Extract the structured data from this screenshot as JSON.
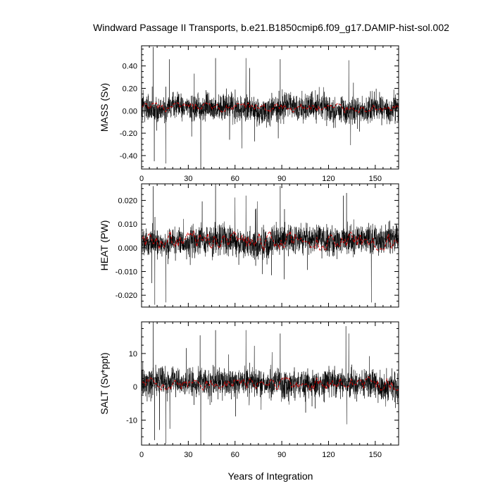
{
  "figure": {
    "title": "Windward Passage II Transports, b.e21.B1850cmip6.f09_g17.DAMIP-hist-sol.002",
    "xlabel": "Years of Integration"
  },
  "chart_data": [
    {
      "type": "line",
      "id": "mass",
      "ylabel": "MASS (Sv)",
      "xlim": [
        0,
        165
      ],
      "ylim": [
        -0.52,
        0.58
      ],
      "xticks": [
        0,
        30,
        60,
        90,
        120,
        150
      ],
      "xtick_labels": [
        "0",
        "30",
        "60",
        "90",
        "120",
        "150"
      ],
      "yticks": [
        0.4,
        0.2,
        0.0,
        -0.2,
        -0.4
      ],
      "ytick_labels": [
        "0.40",
        "0.20",
        "0.00",
        "-0.20",
        "-0.40"
      ],
      "series": [
        {
          "kind": "monthly",
          "color": "#000000",
          "mean": 0.03,
          "spread": 0.1,
          "spikes": [
            [
              7.5,
              0.57
            ],
            [
              8.2,
              -0.45
            ],
            [
              15.5,
              -0.47
            ],
            [
              38,
              -0.52
            ],
            [
              47.5,
              0.47
            ],
            [
              67,
              0.47
            ],
            [
              89,
              0.46
            ],
            [
              133,
              0.45
            ]
          ]
        },
        {
          "kind": "annual",
          "color": "#cc0000",
          "mean": 0.03,
          "range": [
            -0.02,
            0.07
          ]
        }
      ]
    },
    {
      "type": "line",
      "id": "heat",
      "ylabel": "HEAT (PW)",
      "xlim": [
        0,
        165
      ],
      "ylim": [
        -0.025,
        0.027
      ],
      "xticks": [
        0,
        30,
        60,
        90,
        120,
        150
      ],
      "xtick_labels": [
        "",
        "",
        "",
        "",
        "",
        ""
      ],
      "yticks": [
        0.02,
        0.01,
        0.0,
        -0.01,
        -0.02
      ],
      "ytick_labels": [
        "0.020",
        "0.010",
        "0.000",
        "-0.010",
        "-0.020"
      ],
      "series": [
        {
          "kind": "monthly",
          "color": "#000000",
          "mean": 0.003,
          "spread": 0.005,
          "spikes": [
            [
              7.5,
              0.026
            ],
            [
              8.5,
              -0.024
            ],
            [
              15.5,
              -0.023
            ],
            [
              47.5,
              0.027
            ],
            [
              67,
              0.022
            ],
            [
              89,
              0.026
            ],
            [
              129.5,
              0.022
            ],
            [
              147.5,
              -0.023
            ]
          ]
        },
        {
          "kind": "annual",
          "color": "#cc0000",
          "mean": 0.003,
          "range": [
            -0.001,
            0.007
          ]
        }
      ]
    },
    {
      "type": "line",
      "id": "salt",
      "ylabel": "SALT (Sv*ppt)",
      "xlim": [
        0,
        165
      ],
      "ylim": [
        -17.5,
        19.5
      ],
      "xticks": [
        0,
        30,
        60,
        90,
        120,
        150
      ],
      "xtick_labels": [
        "0",
        "30",
        "60",
        "90",
        "120",
        "150"
      ],
      "yticks": [
        10,
        0,
        -10
      ],
      "ytick_labels": [
        "10",
        "0",
        "-10"
      ],
      "series": [
        {
          "kind": "monthly",
          "color": "#000000",
          "mean": 1.0,
          "spread": 3.5,
          "spikes": [
            [
              7.5,
              19.5
            ],
            [
              8.3,
              -16
            ],
            [
              15.5,
              -17
            ],
            [
              38,
              -17.5
            ],
            [
              47.5,
              17
            ],
            [
              67,
              17
            ],
            [
              89,
              16
            ],
            [
              133,
              16
            ]
          ]
        },
        {
          "kind": "annual",
          "color": "#cc0000",
          "mean": 1.0,
          "range": [
            -1.0,
            3.0
          ]
        }
      ]
    }
  ]
}
